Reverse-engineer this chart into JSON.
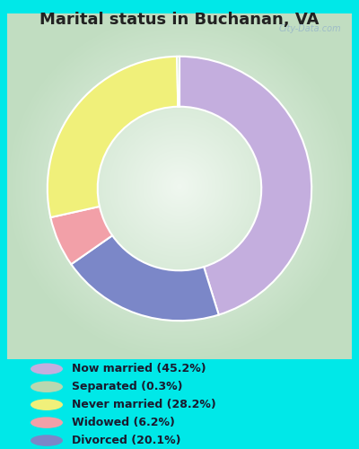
{
  "title": "Marital status in Buchanan, VA",
  "slices": [
    45.2,
    20.1,
    6.2,
    28.2,
    0.3
  ],
  "labels": [
    "Now married (45.2%)",
    "Separated (0.3%)",
    "Never married (28.2%)",
    "Widowed (6.2%)",
    "Divorced (20.1%)"
  ],
  "legend_labels": [
    "Now married (45.2%)",
    "Separated (0.3%)",
    "Never married (28.2%)",
    "Widowed (6.2%)",
    "Divorced (20.1%)"
  ],
  "colors": [
    "#c4aede",
    "#7b87c8",
    "#f2a0a8",
    "#f0f07a",
    "#b8d8b0"
  ],
  "legend_colors": [
    "#c4aede",
    "#b8d8b0",
    "#f0f07a",
    "#f2a0a8",
    "#7b87c8"
  ],
  "background_color": "#00e8e8",
  "watermark": "City-Data.com",
  "title_fontsize": 13,
  "donut_width": 0.38,
  "start_angle": 90
}
